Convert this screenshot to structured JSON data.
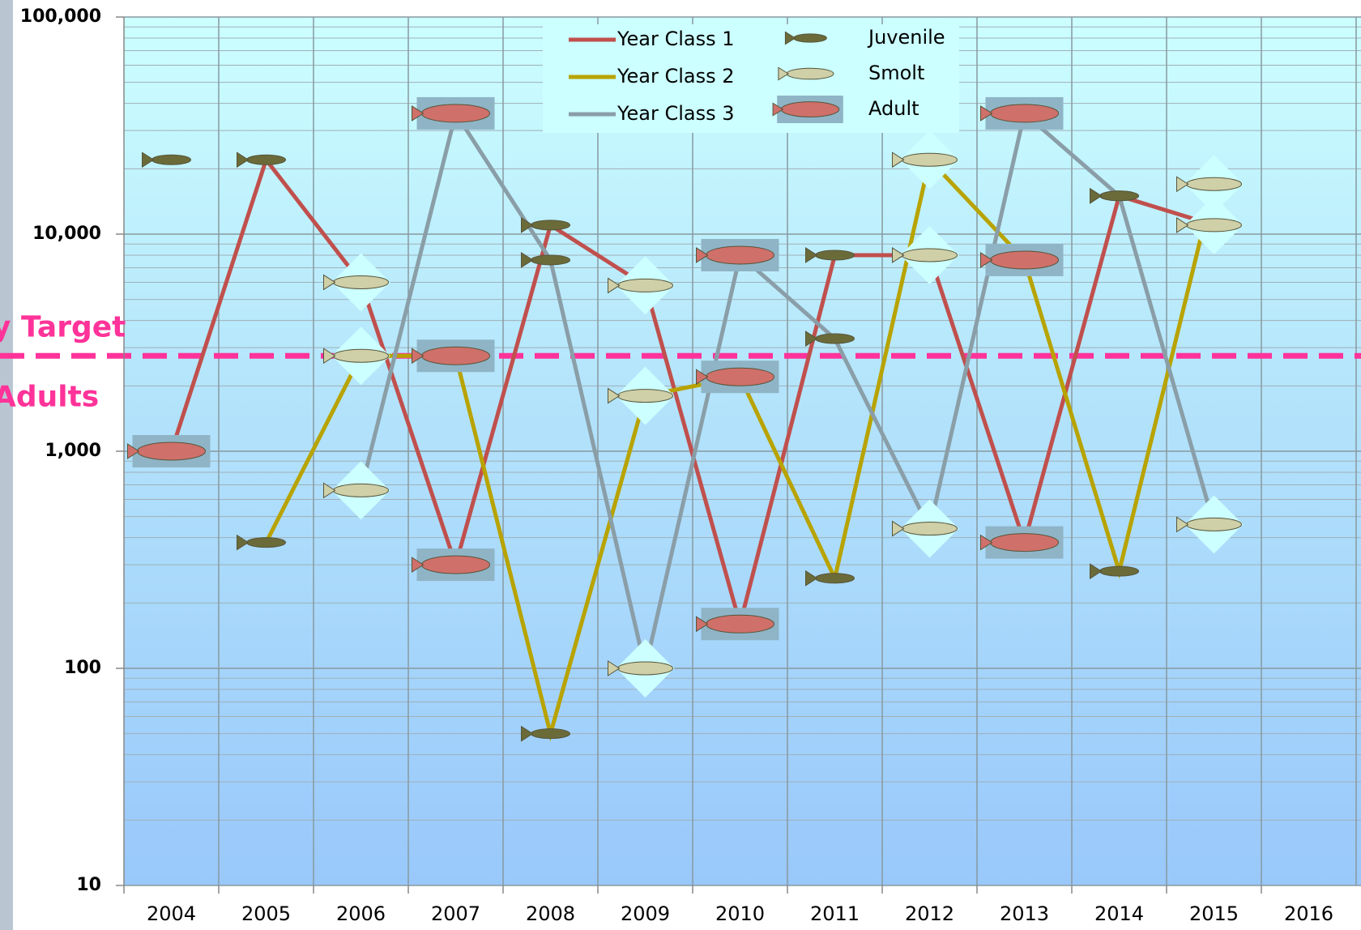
{
  "chart_data": {
    "type": "line",
    "categories": [
      "2004",
      "2005",
      "2006",
      "2007",
      "2008",
      "2009",
      "2010",
      "2011",
      "2012",
      "2013",
      "2014",
      "2015",
      "2016"
    ],
    "series": [
      {
        "name": "Year Class 1",
        "color": "#c0504d",
        "values": [
          1000,
          22000,
          6000,
          300,
          11000,
          5800,
          160,
          8000,
          8000,
          380,
          15000,
          11000,
          null
        ]
      },
      {
        "name": "Year Class 2",
        "color": "#b8a300",
        "values": [
          null,
          380,
          2750,
          2750,
          50,
          1800,
          2200,
          260,
          22000,
          7600,
          280,
          17000,
          null
        ]
      },
      {
        "name": "Year Class 3",
        "color": "#8a9ea8",
        "values": [
          null,
          null,
          660,
          36000,
          7600,
          100,
          8000,
          3300,
          440,
          36000,
          15000,
          460,
          null
        ]
      }
    ],
    "stages": [
      {
        "name": "Juvenile",
        "color": "#6b6b3a"
      },
      {
        "name": "Smolt",
        "color": "#cfcfa8"
      },
      {
        "name": "Adult",
        "color": "#d0706a"
      }
    ],
    "extra_points": [
      {
        "x": "2004",
        "value": 22000
      }
    ],
    "target": 2750,
    "target_color": "#ff3399",
    "annotations": [
      "y Target",
      "Adults"
    ],
    "log_scale": true,
    "grid": true,
    "ylim": [
      10,
      100000
    ],
    "yticks": [
      10,
      100,
      {
        "value": 1000,
        "label": "1,000"
      },
      {
        "value": 10000,
        "label": "10,000"
      },
      {
        "value": 100000,
        "label": "100,000"
      }
    ]
  }
}
